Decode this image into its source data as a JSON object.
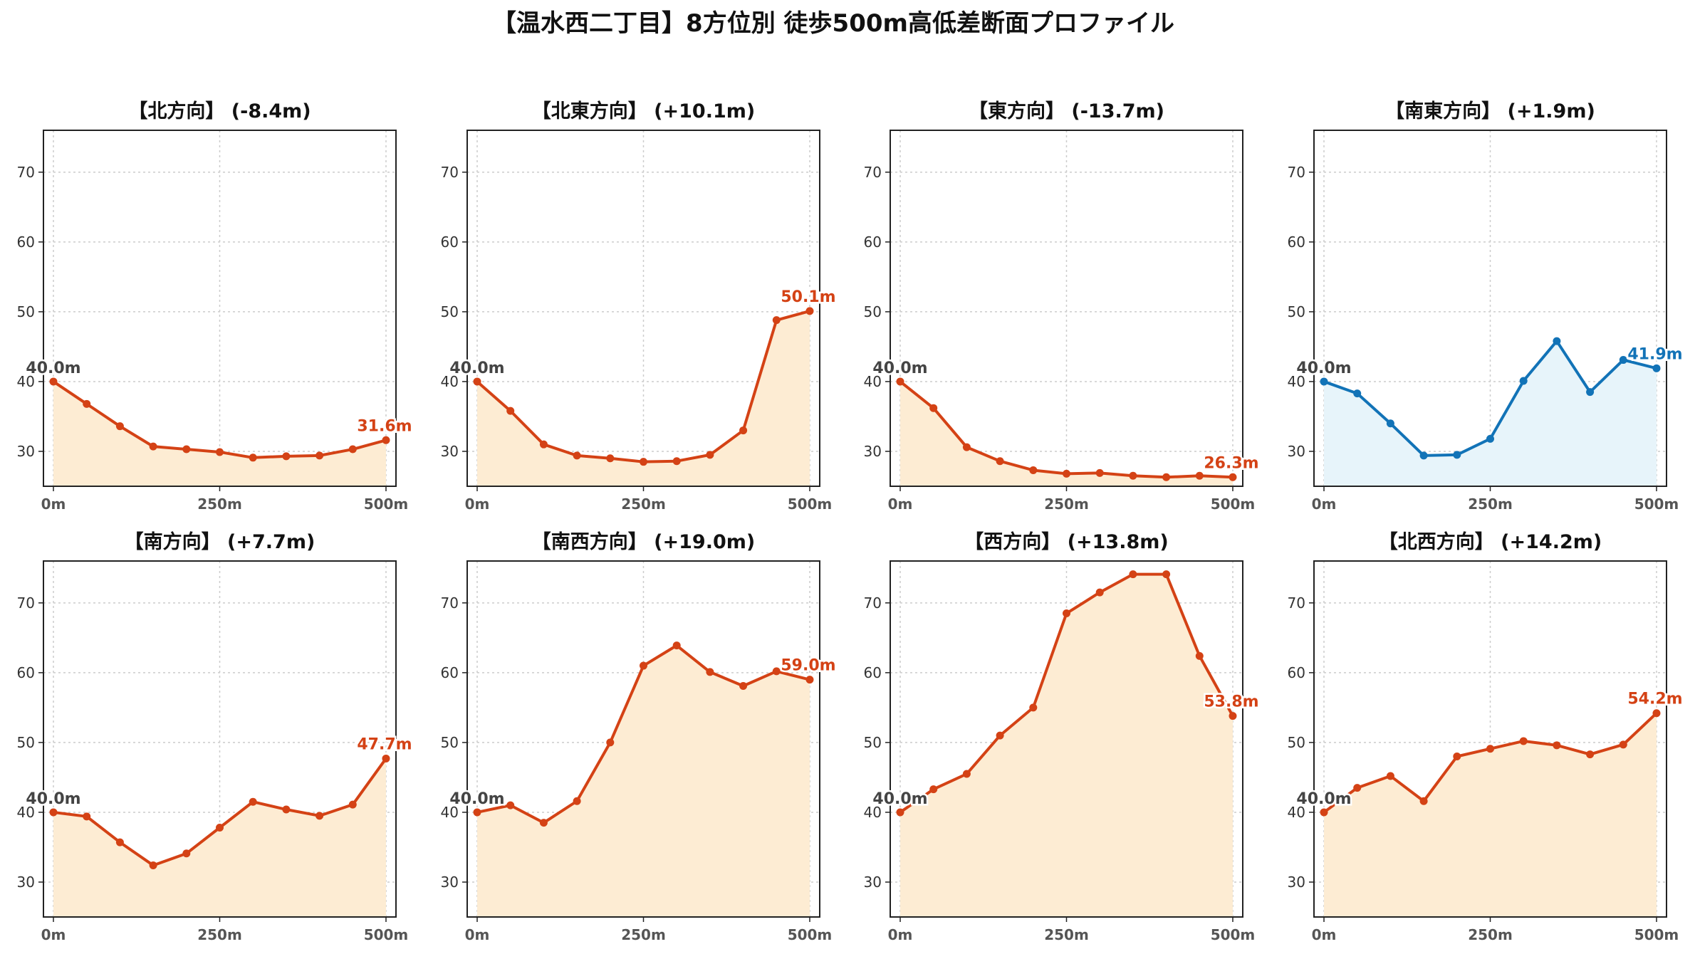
{
  "title": "【温水西二丁目】8方位別 徒歩500m高低差断面プロファイル",
  "colors": {
    "down": "#d44215",
    "down_fill": "#fdecd3",
    "up": "#1273b7",
    "up_fill": "#e7f4fa",
    "start_label": "#444444"
  },
  "chart_data": [
    {
      "type": "area",
      "title": "【北方向】 (-8.4m)",
      "direction_color": "down",
      "x": [
        0,
        50,
        100,
        150,
        200,
        250,
        300,
        350,
        400,
        450,
        500
      ],
      "values": [
        40.0,
        36.8,
        33.6,
        30.7,
        30.3,
        29.9,
        29.1,
        29.3,
        29.4,
        30.3,
        31.6
      ],
      "start_label": "40.0m",
      "end_label": "31.6m",
      "ylim": [
        25,
        76
      ],
      "yticks": [
        30,
        40,
        50,
        60,
        70
      ],
      "xticks": [
        0,
        250,
        500
      ],
      "xtick_labels": [
        "0m",
        "250m",
        "500m"
      ],
      "grid": true
    },
    {
      "type": "area",
      "title": "【北東方向】 (+10.1m)",
      "direction_color": "down",
      "x": [
        0,
        50,
        100,
        150,
        200,
        250,
        300,
        350,
        400,
        450,
        500
      ],
      "values": [
        40.0,
        35.8,
        31.0,
        29.4,
        29.0,
        28.5,
        28.6,
        29.5,
        33.0,
        48.8,
        50.1
      ],
      "start_label": "40.0m",
      "end_label": "50.1m",
      "ylim": [
        25,
        76
      ],
      "yticks": [
        30,
        40,
        50,
        60,
        70
      ],
      "xticks": [
        0,
        250,
        500
      ],
      "xtick_labels": [
        "0m",
        "250m",
        "500m"
      ],
      "grid": true
    },
    {
      "type": "area",
      "title": "【東方向】 (-13.7m)",
      "direction_color": "down",
      "x": [
        0,
        50,
        100,
        150,
        200,
        250,
        300,
        350,
        400,
        450,
        500
      ],
      "values": [
        40.0,
        36.2,
        30.6,
        28.6,
        27.3,
        26.8,
        26.9,
        26.5,
        26.3,
        26.5,
        26.3
      ],
      "start_label": "40.0m",
      "end_label": "26.3m",
      "ylim": [
        25,
        76
      ],
      "yticks": [
        30,
        40,
        50,
        60,
        70
      ],
      "xticks": [
        0,
        250,
        500
      ],
      "xtick_labels": [
        "0m",
        "250m",
        "500m"
      ],
      "grid": true
    },
    {
      "type": "area",
      "title": "【南東方向】 (+1.9m)",
      "direction_color": "up",
      "x": [
        0,
        50,
        100,
        150,
        200,
        250,
        300,
        350,
        400,
        450,
        500
      ],
      "values": [
        40.0,
        38.3,
        34.0,
        29.4,
        29.5,
        31.8,
        40.1,
        45.8,
        38.5,
        43.1,
        41.9
      ],
      "start_label": "40.0m",
      "end_label": "41.9m",
      "ylim": [
        25,
        76
      ],
      "yticks": [
        30,
        40,
        50,
        60,
        70
      ],
      "xticks": [
        0,
        250,
        500
      ],
      "xtick_labels": [
        "0m",
        "250m",
        "500m"
      ],
      "grid": true
    },
    {
      "type": "area",
      "title": "【南方向】 (+7.7m)",
      "direction_color": "down",
      "x": [
        0,
        50,
        100,
        150,
        200,
        250,
        300,
        350,
        400,
        450,
        500
      ],
      "values": [
        40.0,
        39.4,
        35.7,
        32.4,
        34.1,
        37.8,
        41.5,
        40.4,
        39.5,
        41.1,
        47.7
      ],
      "start_label": "40.0m",
      "end_label": "47.7m",
      "ylim": [
        25,
        76
      ],
      "yticks": [
        30,
        40,
        50,
        60,
        70
      ],
      "xticks": [
        0,
        250,
        500
      ],
      "xtick_labels": [
        "0m",
        "250m",
        "500m"
      ],
      "grid": true
    },
    {
      "type": "area",
      "title": "【南西方向】 (+19.0m)",
      "direction_color": "down",
      "x": [
        0,
        50,
        100,
        150,
        200,
        250,
        300,
        350,
        400,
        450,
        500
      ],
      "values": [
        40.0,
        41.0,
        38.5,
        41.6,
        50.0,
        61.0,
        63.9,
        60.1,
        58.1,
        60.2,
        59.0
      ],
      "start_label": "40.0m",
      "end_label": "59.0m",
      "ylim": [
        25,
        76
      ],
      "yticks": [
        30,
        40,
        50,
        60,
        70
      ],
      "xticks": [
        0,
        250,
        500
      ],
      "xtick_labels": [
        "0m",
        "250m",
        "500m"
      ],
      "grid": true
    },
    {
      "type": "area",
      "title": "【西方向】 (+13.8m)",
      "direction_color": "down",
      "x": [
        0,
        50,
        100,
        150,
        200,
        250,
        300,
        350,
        400,
        450,
        500
      ],
      "values": [
        40.0,
        43.3,
        45.5,
        51.0,
        55.0,
        68.5,
        71.5,
        74.1,
        74.1,
        62.4,
        53.8
      ],
      "start_label": "40.0m",
      "end_label": "53.8m",
      "ylim": [
        25,
        76
      ],
      "yticks": [
        30,
        40,
        50,
        60,
        70
      ],
      "xticks": [
        0,
        250,
        500
      ],
      "xtick_labels": [
        "0m",
        "250m",
        "500m"
      ],
      "grid": true
    },
    {
      "type": "area",
      "title": "【北西方向】 (+14.2m)",
      "direction_color": "down",
      "x": [
        0,
        50,
        100,
        150,
        200,
        250,
        300,
        350,
        400,
        450,
        500
      ],
      "values": [
        40.0,
        43.5,
        45.2,
        41.6,
        48.0,
        49.1,
        50.2,
        49.6,
        48.3,
        49.7,
        54.2
      ],
      "start_label": "40.0m",
      "end_label": "54.2m",
      "ylim": [
        25,
        76
      ],
      "yticks": [
        30,
        40,
        50,
        60,
        70
      ],
      "xticks": [
        0,
        250,
        500
      ],
      "xtick_labels": [
        "0m",
        "250m",
        "500m"
      ],
      "grid": true
    }
  ]
}
